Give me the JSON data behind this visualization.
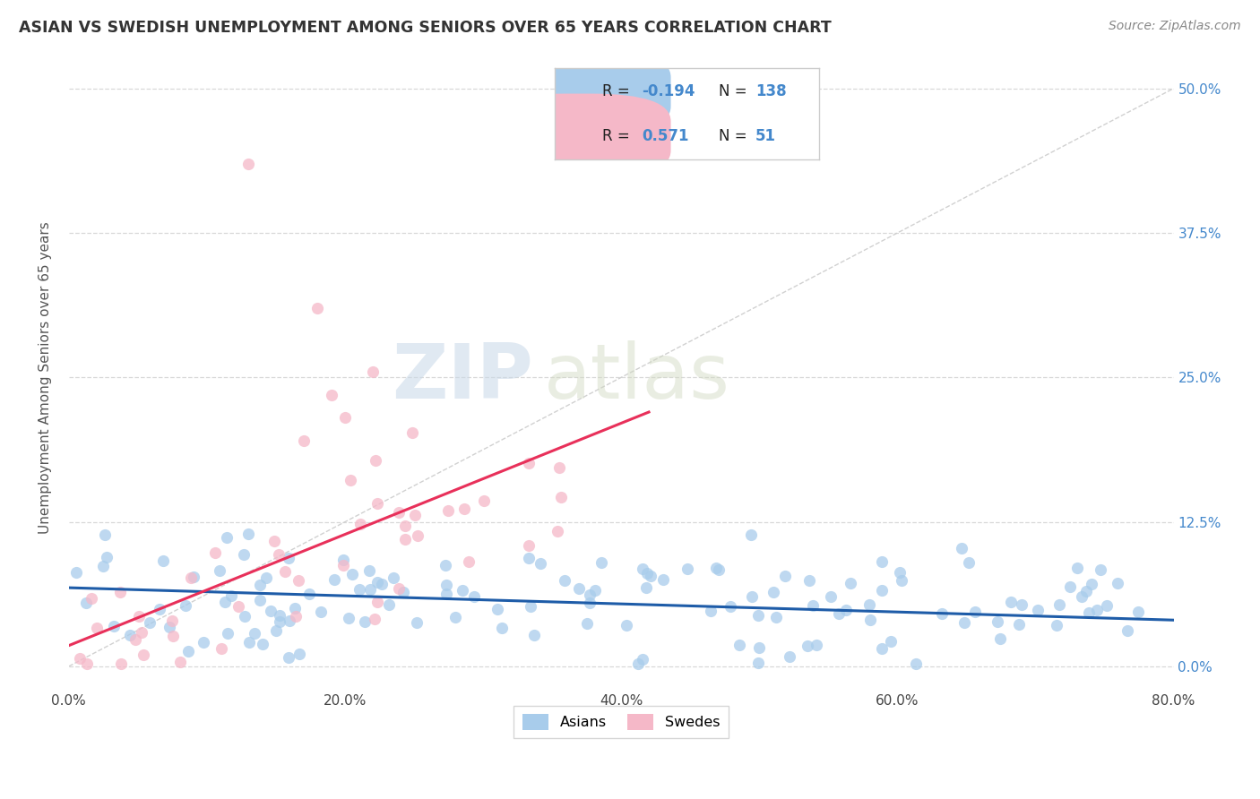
{
  "title": "ASIAN VS SWEDISH UNEMPLOYMENT AMONG SENIORS OVER 65 YEARS CORRELATION CHART",
  "source": "Source: ZipAtlas.com",
  "ylabel": "Unemployment Among Seniors over 65 years",
  "xlabel_ticks": [
    "0.0%",
    "20.0%",
    "40.0%",
    "60.0%",
    "80.0%"
  ],
  "xlabel_vals": [
    0.0,
    0.2,
    0.4,
    0.6,
    0.8
  ],
  "ylabel_ticks_right": [
    "50.0%",
    "37.5%",
    "25.0%",
    "12.5%",
    "0.0%"
  ],
  "ylabel_vals": [
    0.0,
    0.125,
    0.25,
    0.375,
    0.5
  ],
  "xlim": [
    0.0,
    0.8
  ],
  "ylim": [
    -0.02,
    0.52
  ],
  "asian_color": "#a8cceb",
  "swede_color": "#f5b8c8",
  "trend_asian_color": "#1e5ca8",
  "trend_swede_color": "#e8305a",
  "diag_color": "#cccccc",
  "legend_R_asian": "-0.194",
  "legend_N_asian": "138",
  "legend_R_swede": "0.571",
  "legend_N_swede": "51",
  "legend_label_asian": "Asians",
  "legend_label_swede": "Swedes",
  "watermark_zip": "ZIP",
  "watermark_atlas": "atlas",
  "bg_color": "#ffffff",
  "grid_color": "#d8d8d8",
  "title_color": "#333333",
  "source_color": "#888888",
  "right_tick_color": "#4488cc",
  "ylabel_color": "#555555"
}
